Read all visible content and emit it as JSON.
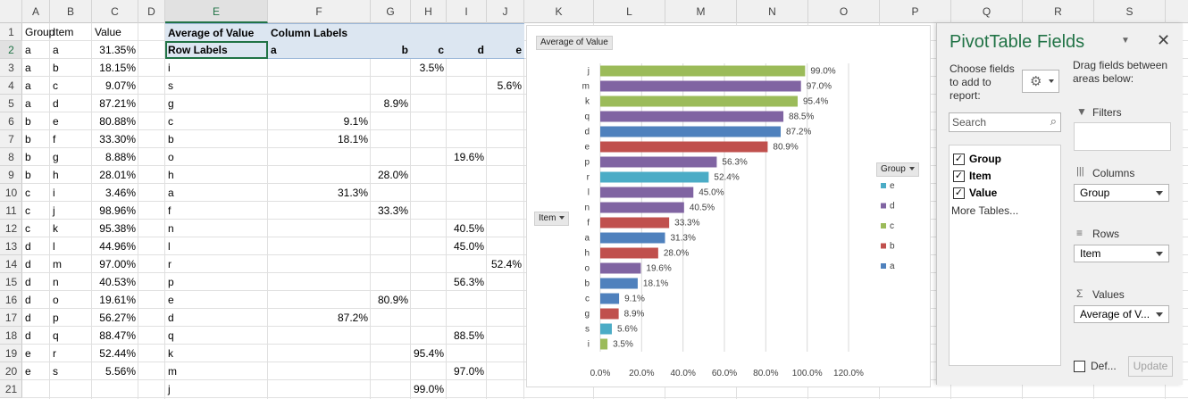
{
  "columns": [
    "A",
    "B",
    "C",
    "D",
    "E",
    "F",
    "G",
    "H",
    "I",
    "J",
    "K",
    "L",
    "M",
    "N",
    "O",
    "P",
    "Q",
    "R",
    "S"
  ],
  "selected_column": "E",
  "rows": [
    "1",
    "2",
    "3",
    "4",
    "5",
    "6",
    "7",
    "8",
    "9",
    "10",
    "11",
    "12",
    "13",
    "14",
    "15",
    "16",
    "17",
    "18",
    "19",
    "20",
    "21"
  ],
  "selected_row": "2",
  "source_table": {
    "header": [
      "Group",
      "Item",
      "Value"
    ],
    "rows": [
      [
        "a",
        "a",
        "31.35%"
      ],
      [
        "a",
        "b",
        "18.15%"
      ],
      [
        "a",
        "c",
        "9.07%"
      ],
      [
        "a",
        "d",
        "87.21%"
      ],
      [
        "b",
        "e",
        "80.88%"
      ],
      [
        "b",
        "f",
        "33.30%"
      ],
      [
        "b",
        "g",
        "8.88%"
      ],
      [
        "b",
        "h",
        "28.01%"
      ],
      [
        "c",
        "i",
        "3.46%"
      ],
      [
        "c",
        "j",
        "98.96%"
      ],
      [
        "c",
        "k",
        "95.38%"
      ],
      [
        "d",
        "l",
        "44.96%"
      ],
      [
        "d",
        "m",
        "97.00%"
      ],
      [
        "d",
        "n",
        "40.53%"
      ],
      [
        "d",
        "o",
        "19.61%"
      ],
      [
        "d",
        "p",
        "56.27%"
      ],
      [
        "d",
        "q",
        "88.47%"
      ],
      [
        "e",
        "r",
        "52.44%"
      ],
      [
        "e",
        "s",
        "5.56%"
      ]
    ]
  },
  "pivot": {
    "value_label": "Average of Value",
    "column_labels": "Column Labels",
    "row_labels": "Row Labels",
    "groups": [
      "a",
      "b",
      "c",
      "d",
      "e"
    ],
    "rows": [
      {
        "label": "i",
        "group": "c",
        "value": "3.5%"
      },
      {
        "label": "s",
        "group": "e",
        "value": "5.6%"
      },
      {
        "label": "g",
        "group": "b",
        "value": "8.9%"
      },
      {
        "label": "c",
        "group": "a",
        "value": "9.1%"
      },
      {
        "label": "b",
        "group": "a",
        "value": "18.1%"
      },
      {
        "label": "o",
        "group": "d",
        "value": "19.6%"
      },
      {
        "label": "h",
        "group": "b",
        "value": "28.0%"
      },
      {
        "label": "a",
        "group": "a",
        "value": "31.3%"
      },
      {
        "label": "f",
        "group": "b",
        "value": "33.3%"
      },
      {
        "label": "n",
        "group": "d",
        "value": "40.5%"
      },
      {
        "label": "l",
        "group": "d",
        "value": "45.0%"
      },
      {
        "label": "r",
        "group": "e",
        "value": "52.4%"
      },
      {
        "label": "p",
        "group": "d",
        "value": "56.3%"
      },
      {
        "label": "e",
        "group": "b",
        "value": "80.9%"
      },
      {
        "label": "d",
        "group": "a",
        "value": "87.2%"
      },
      {
        "label": "q",
        "group": "d",
        "value": "88.5%"
      },
      {
        "label": "k",
        "group": "c",
        "value": "95.4%"
      },
      {
        "label": "m",
        "group": "d",
        "value": "97.0%"
      },
      {
        "label": "j",
        "group": "c",
        "value": "99.0%"
      }
    ]
  },
  "chart_data": {
    "type": "bar",
    "title": "",
    "value_field_button": "Average of Value",
    "axis_field_button": "Item",
    "legend_title": "Group",
    "legend_position": "right",
    "categories": [
      "j",
      "m",
      "k",
      "q",
      "d",
      "e",
      "p",
      "r",
      "l",
      "n",
      "f",
      "a",
      "h",
      "o",
      "b",
      "c",
      "g",
      "s",
      "i"
    ],
    "values": [
      99.0,
      97.0,
      95.4,
      88.5,
      87.2,
      80.9,
      56.3,
      52.4,
      45.0,
      40.5,
      33.3,
      31.3,
      28.0,
      19.6,
      18.1,
      9.1,
      8.9,
      5.6,
      3.5
    ],
    "groups": [
      "c",
      "d",
      "c",
      "d",
      "a",
      "b",
      "d",
      "e",
      "d",
      "d",
      "b",
      "a",
      "b",
      "d",
      "a",
      "a",
      "b",
      "e",
      "c"
    ],
    "data_labels": [
      "99.0%",
      "97.0%",
      "95.4%",
      "88.5%",
      "87.2%",
      "80.9%",
      "56.3%",
      "52.4%",
      "45.0%",
      "40.5%",
      "33.3%",
      "31.3%",
      "28.0%",
      "19.6%",
      "18.1%",
      "9.1%",
      "8.9%",
      "5.6%",
      "3.5%"
    ],
    "xlim": [
      0,
      120
    ],
    "x_ticks": [
      "0.0%",
      "20.0%",
      "40.0%",
      "60.0%",
      "80.0%",
      "100.0%",
      "120.0%"
    ],
    "grid": true,
    "legend": [
      {
        "name": "e",
        "color": "#4bacc6"
      },
      {
        "name": "d",
        "color": "#8064a2"
      },
      {
        "name": "c",
        "color": "#9bbb59"
      },
      {
        "name": "b",
        "color": "#c0504d"
      },
      {
        "name": "a",
        "color": "#4f81bd"
      }
    ],
    "group_colors": {
      "a": "#4f81bd",
      "b": "#c0504d",
      "c": "#9bbb59",
      "d": "#8064a2",
      "e": "#4bacc6"
    }
  },
  "panel": {
    "title": "PivotTable Fields",
    "choose_label": "Choose fields to add to report:",
    "drag_label": "Drag fields between areas below:",
    "search_placeholder": "Search",
    "fields": [
      {
        "name": "Group",
        "checked": true
      },
      {
        "name": "Item",
        "checked": true
      },
      {
        "name": "Value",
        "checked": true
      }
    ],
    "more_tables": "More Tables...",
    "filters_label": "Filters",
    "columns_label": "Columns",
    "columns_value": "Group",
    "rows_label": "Rows",
    "rows_value": "Item",
    "values_label": "Values",
    "values_value": "Average of V...",
    "defer_label": "Def...",
    "update_label": "Update"
  }
}
